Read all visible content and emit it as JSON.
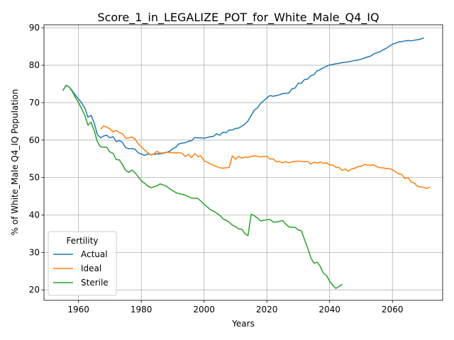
{
  "chart_data": {
    "type": "line",
    "title": "Score_1_in_LEGALIZE_POT_for_White_Male_Q4_IQ",
    "xlabel": "Years",
    "ylabel": "% of White_Male Q4_IQ Population",
    "xlim": [
      1949,
      2076
    ],
    "ylim": [
      17.2,
      90.8
    ],
    "xticks": [
      1960,
      1980,
      2000,
      2020,
      2040,
      2060
    ],
    "yticks": [
      20,
      30,
      40,
      50,
      60,
      70,
      80,
      90
    ],
    "grid": true,
    "legend": {
      "title": "Fertility",
      "placement": "lower left"
    },
    "series": [
      {
        "name": "Actual",
        "color": "#1f77b4",
        "points": [
          [
            1955,
            73.2
          ],
          [
            1956,
            74.6
          ],
          [
            1957,
            74.2
          ],
          [
            1958,
            73.2
          ],
          [
            1959,
            72.0
          ],
          [
            1960,
            71.0
          ],
          [
            1961,
            69.9
          ],
          [
            1962,
            68.6
          ],
          [
            1963,
            66.1
          ],
          [
            1964,
            66.6
          ],
          [
            1965,
            64.6
          ],
          [
            1966,
            61.5
          ],
          [
            1967,
            60.6
          ],
          [
            1968,
            61.1
          ],
          [
            1969,
            61.3
          ],
          [
            1970,
            60.6
          ],
          [
            1971,
            60.9
          ],
          [
            1972,
            59.6
          ],
          [
            1973,
            59.9
          ],
          [
            1974,
            59.4
          ],
          [
            1975,
            58.0
          ],
          [
            1976,
            57.7
          ],
          [
            1977,
            57.7
          ],
          [
            1978,
            57.6
          ],
          [
            1979,
            56.6
          ],
          [
            1980,
            56.3
          ],
          [
            1981,
            55.9
          ],
          [
            1982,
            56.3
          ],
          [
            1983,
            56.1
          ],
          [
            1984,
            56.2
          ],
          [
            1985,
            56.3
          ],
          [
            1986,
            56.3
          ],
          [
            1987,
            56.5
          ],
          [
            1988,
            56.7
          ],
          [
            1989,
            57.0
          ],
          [
            1990,
            57.7
          ],
          [
            1991,
            58.1
          ],
          [
            1992,
            59.0
          ],
          [
            1993,
            59.2
          ],
          [
            1994,
            59.3
          ],
          [
            1995,
            59.7
          ],
          [
            1996,
            59.8
          ],
          [
            1997,
            60.7
          ],
          [
            1998,
            60.6
          ],
          [
            1999,
            60.6
          ],
          [
            2000,
            60.5
          ],
          [
            2001,
            60.7
          ],
          [
            2002,
            60.9
          ],
          [
            2003,
            61.0
          ],
          [
            2004,
            61.7
          ],
          [
            2005,
            61.3
          ],
          [
            2006,
            62.1
          ],
          [
            2007,
            62.0
          ],
          [
            2008,
            62.7
          ],
          [
            2009,
            62.7
          ],
          [
            2010,
            63.1
          ],
          [
            2011,
            63.2
          ],
          [
            2012,
            63.7
          ],
          [
            2013,
            64.3
          ],
          [
            2014,
            65.1
          ],
          [
            2015,
            66.6
          ],
          [
            2016,
            68.0
          ],
          [
            2017,
            68.6
          ],
          [
            2018,
            69.8
          ],
          [
            2019,
            70.5
          ],
          [
            2020,
            71.3
          ],
          [
            2021,
            71.9
          ],
          [
            2022,
            71.7
          ],
          [
            2023,
            71.9
          ],
          [
            2024,
            72.1
          ],
          [
            2025,
            72.4
          ],
          [
            2026,
            72.5
          ],
          [
            2027,
            72.6
          ],
          [
            2028,
            73.7
          ],
          [
            2029,
            73.9
          ],
          [
            2030,
            75.2
          ],
          [
            2031,
            75.2
          ],
          [
            2032,
            76.2
          ],
          [
            2033,
            76.3
          ],
          [
            2034,
            77.2
          ],
          [
            2035,
            77.5
          ],
          [
            2036,
            78.5
          ],
          [
            2037,
            78.8
          ],
          [
            2038,
            79.3
          ],
          [
            2039,
            79.7
          ],
          [
            2040,
            80.1
          ],
          [
            2041,
            80.2
          ],
          [
            2042,
            80.4
          ],
          [
            2043,
            80.5
          ],
          [
            2044,
            80.7
          ],
          [
            2045,
            80.8
          ],
          [
            2046,
            80.9
          ],
          [
            2047,
            81.1
          ],
          [
            2048,
            81.3
          ],
          [
            2049,
            81.4
          ],
          [
            2050,
            81.6
          ],
          [
            2051,
            81.9
          ],
          [
            2052,
            82.2
          ],
          [
            2053,
            82.4
          ],
          [
            2054,
            83.0
          ],
          [
            2055,
            83.3
          ],
          [
            2056,
            83.6
          ],
          [
            2057,
            84.1
          ],
          [
            2058,
            84.5
          ],
          [
            2059,
            85.1
          ],
          [
            2060,
            85.6
          ],
          [
            2061,
            85.9
          ],
          [
            2062,
            86.2
          ],
          [
            2063,
            86.3
          ],
          [
            2064,
            86.5
          ],
          [
            2065,
            86.6
          ],
          [
            2066,
            86.5
          ],
          [
            2067,
            86.7
          ],
          [
            2068,
            86.8
          ],
          [
            2069,
            87.0
          ],
          [
            2070,
            87.3
          ]
        ]
      },
      {
        "name": "Ideal",
        "color": "#ff7f0e",
        "points": [
          [
            1967,
            62.9
          ],
          [
            1968,
            63.8
          ],
          [
            1969,
            63.5
          ],
          [
            1970,
            63.0
          ],
          [
            1971,
            62.2
          ],
          [
            1972,
            62.6
          ],
          [
            1973,
            62.0
          ],
          [
            1974,
            61.7
          ],
          [
            1975,
            60.5
          ],
          [
            1976,
            60.6
          ],
          [
            1977,
            60.8
          ],
          [
            1978,
            60.3
          ],
          [
            1979,
            59.0
          ],
          [
            1980,
            58.2
          ],
          [
            1981,
            57.4
          ],
          [
            1982,
            56.7
          ],
          [
            1983,
            56.0
          ],
          [
            1984,
            56.3
          ],
          [
            1985,
            57.0
          ],
          [
            1986,
            56.5
          ],
          [
            1987,
            56.6
          ],
          [
            1988,
            56.8
          ],
          [
            1989,
            56.7
          ],
          [
            1990,
            56.6
          ],
          [
            1991,
            56.6
          ],
          [
            1992,
            56.6
          ],
          [
            1993,
            56.5
          ],
          [
            1994,
            55.6
          ],
          [
            1995,
            56.2
          ],
          [
            1996,
            55.3
          ],
          [
            1997,
            56.4
          ],
          [
            1998,
            55.6
          ],
          [
            1999,
            55.8
          ],
          [
            2000,
            54.5
          ],
          [
            2001,
            54.1
          ],
          [
            2002,
            53.6
          ],
          [
            2003,
            53.3
          ],
          [
            2004,
            52.9
          ],
          [
            2005,
            52.6
          ],
          [
            2006,
            52.5
          ],
          [
            2007,
            52.6
          ],
          [
            2008,
            52.7
          ],
          [
            2009,
            55.8
          ],
          [
            2010,
            54.9
          ],
          [
            2011,
            55.6
          ],
          [
            2012,
            55.2
          ],
          [
            2013,
            55.5
          ],
          [
            2014,
            55.4
          ],
          [
            2015,
            55.6
          ],
          [
            2016,
            55.8
          ],
          [
            2017,
            55.7
          ],
          [
            2018,
            55.5
          ],
          [
            2019,
            55.6
          ],
          [
            2020,
            55.7
          ],
          [
            2021,
            54.9
          ],
          [
            2022,
            55.0
          ],
          [
            2023,
            54.2
          ],
          [
            2024,
            54.3
          ],
          [
            2025,
            53.9
          ],
          [
            2026,
            54.3
          ],
          [
            2027,
            53.9
          ],
          [
            2028,
            54.2
          ],
          [
            2029,
            54.3
          ],
          [
            2030,
            54.4
          ],
          [
            2031,
            54.3
          ],
          [
            2032,
            54.2
          ],
          [
            2033,
            54.3
          ],
          [
            2034,
            53.6
          ],
          [
            2035,
            54.1
          ],
          [
            2036,
            53.9
          ],
          [
            2037,
            54.1
          ],
          [
            2038,
            53.8
          ],
          [
            2039,
            54.0
          ],
          [
            2040,
            53.3
          ],
          [
            2041,
            53.4
          ],
          [
            2042,
            52.7
          ],
          [
            2043,
            52.7
          ],
          [
            2044,
            51.9
          ],
          [
            2045,
            52.3
          ],
          [
            2046,
            51.7
          ],
          [
            2047,
            52.3
          ],
          [
            2048,
            52.5
          ],
          [
            2049,
            52.9
          ],
          [
            2050,
            53.0
          ],
          [
            2051,
            53.5
          ],
          [
            2052,
            53.3
          ],
          [
            2053,
            53.3
          ],
          [
            2054,
            53.4
          ],
          [
            2055,
            52.9
          ],
          [
            2056,
            52.6
          ],
          [
            2057,
            52.6
          ],
          [
            2058,
            52.4
          ],
          [
            2059,
            52.4
          ],
          [
            2060,
            52.1
          ],
          [
            2061,
            51.5
          ],
          [
            2062,
            51.0
          ],
          [
            2063,
            50.8
          ],
          [
            2064,
            49.7
          ],
          [
            2065,
            50.0
          ],
          [
            2066,
            48.8
          ],
          [
            2067,
            48.5
          ],
          [
            2068,
            47.6
          ],
          [
            2069,
            47.5
          ],
          [
            2070,
            47.4
          ],
          [
            2071,
            47.1
          ],
          [
            2072,
            47.5
          ]
        ]
      },
      {
        "name": "Sterile",
        "color": "#2ca02c",
        "points": [
          [
            1955,
            73.2
          ],
          [
            1956,
            74.6
          ],
          [
            1957,
            74.2
          ],
          [
            1958,
            73.0
          ],
          [
            1959,
            71.4
          ],
          [
            1960,
            70.0
          ],
          [
            1961,
            68.4
          ],
          [
            1962,
            66.6
          ],
          [
            1963,
            64.0
          ],
          [
            1964,
            64.8
          ],
          [
            1965,
            62.5
          ],
          [
            1966,
            59.6
          ],
          [
            1967,
            58.2
          ],
          [
            1968,
            58.1
          ],
          [
            1969,
            58.1
          ],
          [
            1970,
            56.8
          ],
          [
            1971,
            56.5
          ],
          [
            1972,
            54.8
          ],
          [
            1973,
            54.7
          ],
          [
            1974,
            53.5
          ],
          [
            1975,
            51.9
          ],
          [
            1976,
            51.4
          ],
          [
            1977,
            52.0
          ],
          [
            1978,
            51.3
          ],
          [
            1979,
            50.2
          ],
          [
            1980,
            49.1
          ],
          [
            1981,
            48.5
          ],
          [
            1982,
            47.8
          ],
          [
            1983,
            47.3
          ],
          [
            1984,
            47.5
          ],
          [
            1985,
            47.8
          ],
          [
            1986,
            48.3
          ],
          [
            1987,
            48.0
          ],
          [
            1988,
            47.7
          ],
          [
            1989,
            47.0
          ],
          [
            1990,
            46.5
          ],
          [
            1991,
            46.0
          ],
          [
            1992,
            45.7
          ],
          [
            1993,
            45.5
          ],
          [
            1994,
            45.3
          ],
          [
            1995,
            44.9
          ],
          [
            1996,
            44.5
          ],
          [
            1997,
            44.5
          ],
          [
            1998,
            44.4
          ],
          [
            1999,
            43.7
          ],
          [
            2000,
            42.8
          ],
          [
            2001,
            42.2
          ],
          [
            2002,
            41.4
          ],
          [
            2003,
            41.0
          ],
          [
            2004,
            40.5
          ],
          [
            2005,
            39.9
          ],
          [
            2006,
            39.0
          ],
          [
            2007,
            38.6
          ],
          [
            2008,
            38.1
          ],
          [
            2009,
            37.3
          ],
          [
            2010,
            36.9
          ],
          [
            2011,
            36.3
          ],
          [
            2012,
            36.2
          ],
          [
            2013,
            35.0
          ],
          [
            2014,
            34.5
          ],
          [
            2015,
            40.2
          ],
          [
            2016,
            39.8
          ],
          [
            2017,
            39.2
          ],
          [
            2018,
            38.4
          ],
          [
            2019,
            38.6
          ],
          [
            2020,
            38.7
          ],
          [
            2021,
            38.8
          ],
          [
            2022,
            38.1
          ],
          [
            2023,
            38.1
          ],
          [
            2024,
            38.3
          ],
          [
            2025,
            38.5
          ],
          [
            2026,
            37.6
          ],
          [
            2027,
            36.8
          ],
          [
            2028,
            36.7
          ],
          [
            2029,
            36.7
          ],
          [
            2030,
            36.0
          ],
          [
            2031,
            35.8
          ],
          [
            2032,
            33.4
          ],
          [
            2033,
            31.2
          ],
          [
            2034,
            28.6
          ],
          [
            2035,
            27.1
          ],
          [
            2036,
            27.4
          ],
          [
            2037,
            26.3
          ],
          [
            2038,
            24.5
          ],
          [
            2039,
            23.8
          ],
          [
            2040,
            22.3
          ],
          [
            2041,
            21.2
          ],
          [
            2042,
            20.4
          ],
          [
            2043,
            20.9
          ],
          [
            2044,
            21.5
          ]
        ]
      }
    ]
  }
}
